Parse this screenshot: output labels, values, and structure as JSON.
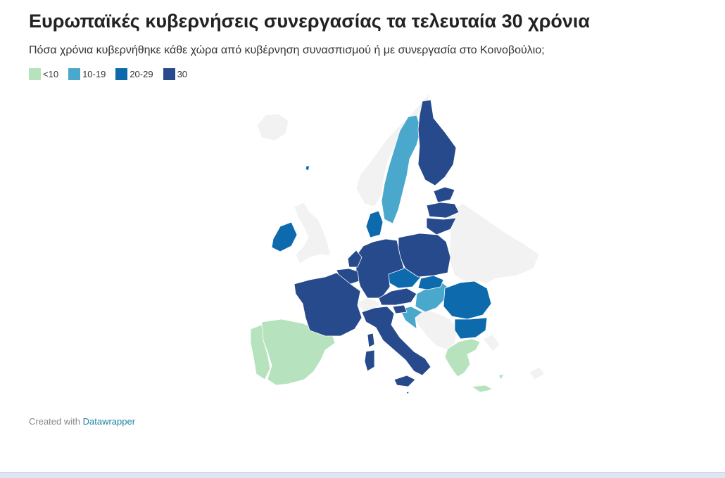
{
  "title": "Ευρωπαϊκές κυβερνήσεις συνεργασίας τα τελευταία 30 χρόνια",
  "subtitle": "Πόσα χρόνια κυβερνήθηκε κάθε χώρα από κυβέρνηση συνασπισμού ή με συνεργασία στο Κοινοβούλιο;",
  "legend": [
    {
      "label": "<10",
      "color": "#b6e3bd"
    },
    {
      "label": "10-19",
      "color": "#4aa8cc"
    },
    {
      "label": "20-29",
      "color": "#0c6aad"
    },
    {
      "label": "30",
      "color": "#264a8c"
    }
  ],
  "colors": {
    "non_member": "#f2f2f2",
    "background": "#ffffff"
  },
  "chart_data": {
    "type": "choropleth",
    "categories": [
      "<10",
      "10-19",
      "20-29",
      "30"
    ],
    "regions": [
      {
        "country": "Spain",
        "category": "<10"
      },
      {
        "country": "Portugal",
        "category": "<10"
      },
      {
        "country": "Greece",
        "category": "<10"
      },
      {
        "country": "Cyprus",
        "category": "<10"
      },
      {
        "country": "Sweden",
        "category": "10-19"
      },
      {
        "country": "Hungary",
        "category": "10-19"
      },
      {
        "country": "Croatia",
        "category": "10-19"
      },
      {
        "country": "Ireland",
        "category": "20-29"
      },
      {
        "country": "Denmark",
        "category": "20-29"
      },
      {
        "country": "Czechia",
        "category": "20-29"
      },
      {
        "country": "Romania",
        "category": "20-29"
      },
      {
        "country": "Bulgaria",
        "category": "20-29"
      },
      {
        "country": "Slovakia",
        "category": "20-29"
      },
      {
        "country": "Finland",
        "category": "30"
      },
      {
        "country": "Estonia",
        "category": "30"
      },
      {
        "country": "Latvia",
        "category": "30"
      },
      {
        "country": "Lithuania",
        "category": "30"
      },
      {
        "country": "Poland",
        "category": "30"
      },
      {
        "country": "Germany",
        "category": "30"
      },
      {
        "country": "Netherlands",
        "category": "30"
      },
      {
        "country": "Belgium",
        "category": "30"
      },
      {
        "country": "Luxembourg",
        "category": "30"
      },
      {
        "country": "France",
        "category": "30"
      },
      {
        "country": "Austria",
        "category": "30"
      },
      {
        "country": "Slovenia",
        "category": "30"
      },
      {
        "country": "Italy",
        "category": "30"
      },
      {
        "country": "Malta",
        "category": "30"
      }
    ]
  },
  "footer": {
    "prefix": "Created with",
    "link": "Datawrapper"
  }
}
